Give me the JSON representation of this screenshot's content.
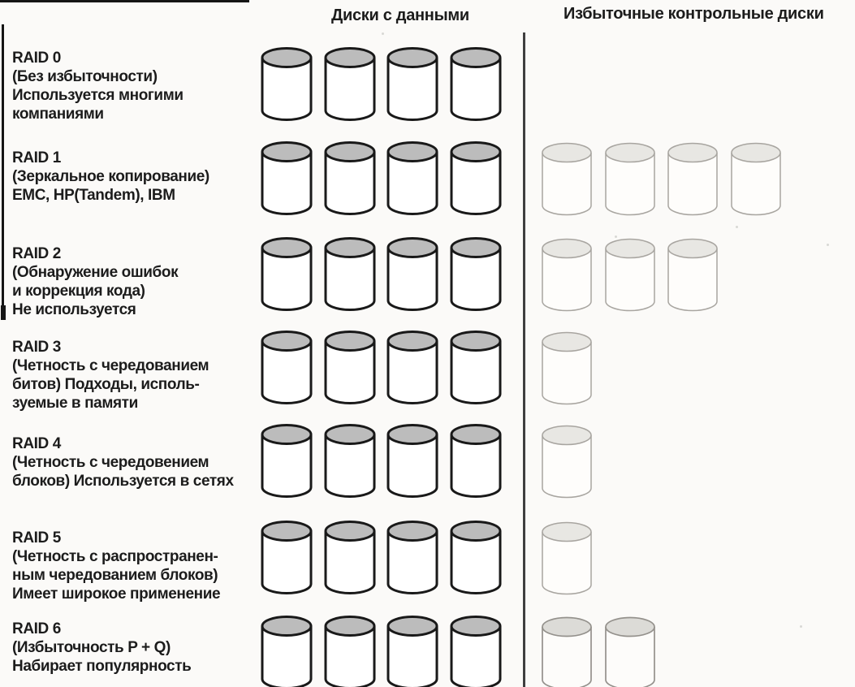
{
  "columns": {
    "data_header": "Диски с данными",
    "check_header": "Избыточные контрольные диски"
  },
  "rows": [
    {
      "name": "RAID 0",
      "description_lines": [
        "(Без избыточности)",
        "Используется многими",
        "компаниями"
      ],
      "data_disks": 4,
      "check_disks": 0,
      "check_style": "faint"
    },
    {
      "name": "RAID 1",
      "description_lines": [
        "(Зеркальное копирование)",
        "EMC, HP(Tandem), IBM"
      ],
      "data_disks": 4,
      "check_disks": 4,
      "check_style": "faint"
    },
    {
      "name": "RAID 2",
      "description_lines": [
        "(Обнаружение ошибок",
        "и коррекция кода)",
        "Не используется"
      ],
      "data_disks": 4,
      "check_disks": 3,
      "check_style": "faint"
    },
    {
      "name": "RAID 3",
      "description_lines": [
        "(Четность с чередованием",
        "битов) Подходы, исполь-",
        "зуемые в памяти"
      ],
      "data_disks": 4,
      "check_disks": 1,
      "check_style": "faint"
    },
    {
      "name": "RAID 4",
      "description_lines": [
        "(Четность с чередовением",
        "блоков) Используется в сетях"
      ],
      "data_disks": 4,
      "check_disks": 1,
      "check_style": "faint"
    },
    {
      "name": "RAID 5",
      "description_lines": [
        "(Четность с распространен-",
        "ным чередованием блоков)",
        "Имеет широкое применение"
      ],
      "data_disks": 4,
      "check_disks": 1,
      "check_style": "faint"
    },
    {
      "name": "RAID 6",
      "description_lines": [
        "(Избыточность P + Q)",
        "Набирает популярность"
      ],
      "data_disks": 4,
      "check_disks": 2,
      "check_style": "medium"
    }
  ],
  "colors": {
    "page_bg": "#fbfaf8",
    "text": "#1c1c1c",
    "divider": "#3f3f3f",
    "data_disk_top": "#bcbcbc",
    "data_disk_outline": "#191919",
    "check_disk_top": "#e8e7e3",
    "check_disk_outline": "#a8a5a0",
    "check_disk_top_medium": "#dcdbd7",
    "check_disk_outline_medium": "#94918c"
  }
}
